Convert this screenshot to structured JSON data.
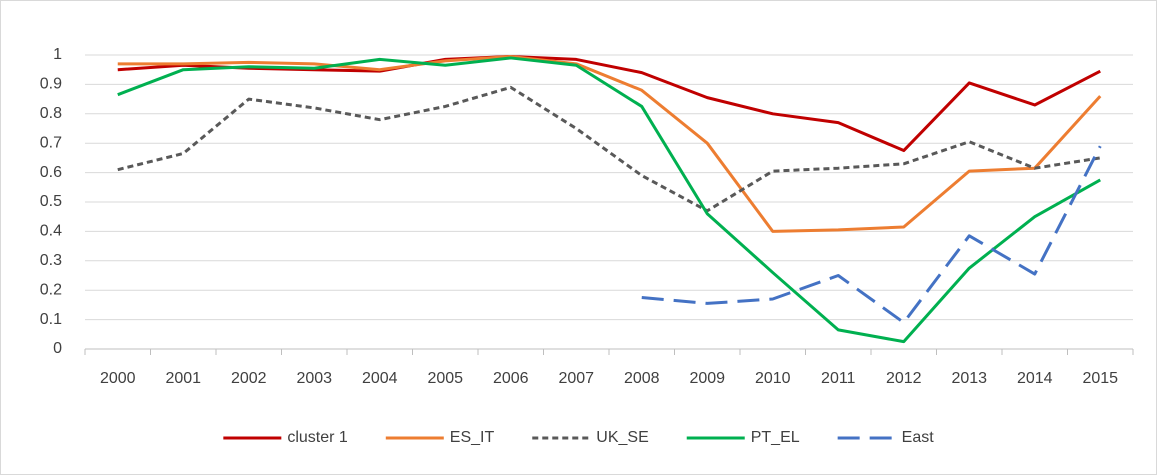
{
  "chart_data": {
    "type": "line",
    "categories": [
      "2000",
      "2001",
      "2002",
      "2003",
      "2004",
      "2005",
      "2006",
      "2007",
      "2008",
      "2009",
      "2010",
      "2011",
      "2012",
      "2013",
      "2014",
      "2015"
    ],
    "series": [
      {
        "name": "cluster 1",
        "color": "#c00000",
        "dash": "solid",
        "values": [
          0.95,
          0.965,
          0.955,
          0.95,
          0.945,
          0.985,
          0.995,
          0.985,
          0.94,
          0.855,
          0.8,
          0.77,
          0.675,
          0.905,
          0.83,
          0.945
        ]
      },
      {
        "name": "ES_IT",
        "color": "#ed7d31",
        "dash": "solid",
        "values": [
          0.97,
          0.97,
          0.975,
          0.97,
          0.95,
          0.98,
          0.995,
          0.97,
          0.88,
          0.7,
          0.4,
          0.405,
          0.415,
          0.605,
          0.615,
          0.86
        ]
      },
      {
        "name": "UK_SE",
        "color": "#595959",
        "dash": "dotted",
        "values": [
          0.61,
          0.665,
          0.85,
          0.82,
          0.78,
          0.825,
          0.89,
          0.75,
          0.59,
          0.47,
          0.605,
          0.615,
          0.63,
          0.705,
          0.615,
          0.65
        ]
      },
      {
        "name": "PT_EL",
        "color": "#00b050",
        "dash": "solid",
        "values": [
          0.865,
          0.95,
          0.96,
          0.955,
          0.985,
          0.965,
          0.99,
          0.965,
          0.825,
          0.46,
          0.26,
          0.065,
          0.025,
          0.275,
          0.45,
          0.575
        ]
      },
      {
        "name": "East",
        "color": "#4472c4",
        "dash": "dashed",
        "values": [
          null,
          null,
          null,
          null,
          null,
          null,
          null,
          null,
          0.175,
          0.155,
          0.17,
          0.25,
          0.09,
          0.385,
          0.255,
          0.69
        ]
      }
    ],
    "ylim": [
      0,
      1
    ],
    "yticks": [
      0,
      0.1,
      0.2,
      0.3,
      0.4,
      0.5,
      0.6,
      0.7,
      0.8,
      0.9,
      1
    ],
    "grid": true,
    "legend": "bottom"
  }
}
